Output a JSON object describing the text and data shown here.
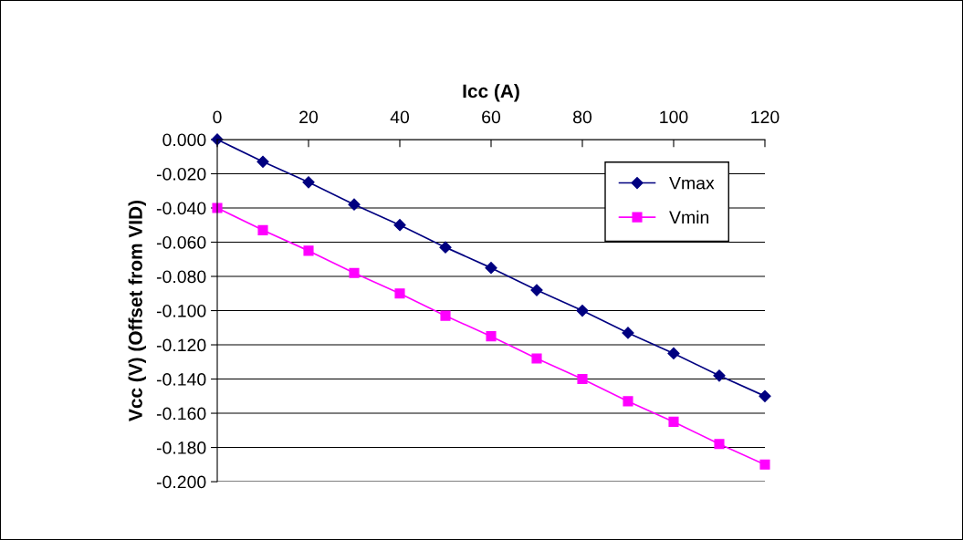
{
  "chart_data": {
    "type": "line",
    "xlabel": "Icc (A)",
    "ylabel": "Vcc (V) (Offset from VID)",
    "x": [
      0,
      10,
      20,
      30,
      40,
      50,
      60,
      70,
      80,
      90,
      100,
      110,
      120
    ],
    "series": [
      {
        "name": "Vmax",
        "color": "#000080",
        "marker": "diamond",
        "values": [
          0.0,
          -0.013,
          -0.025,
          -0.038,
          -0.05,
          -0.063,
          -0.075,
          -0.088,
          -0.1,
          -0.113,
          -0.125,
          -0.138,
          -0.15
        ]
      },
      {
        "name": "Vmin",
        "color": "#ff00ff",
        "marker": "square",
        "values": [
          -0.04,
          -0.053,
          -0.065,
          -0.078,
          -0.09,
          -0.103,
          -0.115,
          -0.128,
          -0.14,
          -0.153,
          -0.165,
          -0.178,
          -0.19
        ]
      }
    ],
    "xlim": [
      0,
      120
    ],
    "xticks": [
      0,
      20,
      40,
      60,
      80,
      100,
      120
    ],
    "ylim": [
      -0.2,
      0.0
    ],
    "yticks": [
      {
        "value": 0.0,
        "label": "0.000"
      },
      {
        "value": -0.02,
        "label": "-0.020"
      },
      {
        "value": -0.04,
        "label": "-0.040"
      },
      {
        "value": -0.06,
        "label": "-0.060"
      },
      {
        "value": -0.08,
        "label": "-0.080"
      },
      {
        "value": -0.1,
        "label": "-0.100"
      },
      {
        "value": -0.12,
        "label": "-0.120"
      },
      {
        "value": -0.14,
        "label": "-0.140"
      },
      {
        "value": -0.16,
        "label": "-0.160"
      },
      {
        "value": -0.18,
        "label": "-0.180"
      },
      {
        "value": -0.2,
        "label": "-0.200"
      }
    ],
    "grid": "y",
    "legend": "top right",
    "line_style": "solid"
  }
}
